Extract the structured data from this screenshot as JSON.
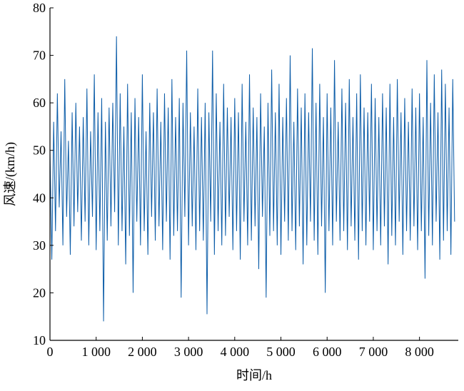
{
  "chart_data": {
    "type": "line",
    "xlabel": "时间/h",
    "ylabel": "风速/(km/h)",
    "xlim": [
      0,
      8840
    ],
    "ylim": [
      10,
      80
    ],
    "xticks": [
      0,
      {
        "value": 1000,
        "label": "1 000"
      },
      {
        "value": 2000,
        "label": "2 000"
      },
      {
        "value": 3000,
        "label": "3 000"
      },
      {
        "value": 4000,
        "label": "4 000"
      },
      {
        "value": 5000,
        "label": "5 000"
      },
      {
        "value": 6000,
        "label": "6 000"
      },
      {
        "value": 7000,
        "label": "7 000"
      },
      {
        "value": 8000,
        "label": "8 000"
      }
    ],
    "yticks": [
      10,
      20,
      30,
      40,
      50,
      60,
      70,
      80
    ],
    "color": "#0b5ca8",
    "x": [
      0,
      40,
      80,
      120,
      160,
      200,
      240,
      280,
      320,
      360,
      400,
      440,
      480,
      520,
      560,
      600,
      640,
      680,
      720,
      760,
      800,
      840,
      880,
      920,
      960,
      1000,
      1040,
      1080,
      1120,
      1160,
      1200,
      1240,
      1280,
      1320,
      1360,
      1400,
      1440,
      1480,
      1520,
      1560,
      1600,
      1640,
      1680,
      1720,
      1760,
      1800,
      1840,
      1880,
      1920,
      1960,
      2000,
      2040,
      2080,
      2120,
      2160,
      2200,
      2240,
      2280,
      2320,
      2360,
      2400,
      2440,
      2480,
      2520,
      2560,
      2600,
      2640,
      2680,
      2720,
      2760,
      2800,
      2840,
      2880,
      2920,
      2960,
      3000,
      3040,
      3080,
      3120,
      3160,
      3200,
      3240,
      3280,
      3320,
      3360,
      3400,
      3440,
      3480,
      3520,
      3560,
      3600,
      3640,
      3680,
      3720,
      3760,
      3800,
      3840,
      3880,
      3920,
      3960,
      4000,
      4040,
      4080,
      4120,
      4160,
      4200,
      4240,
      4280,
      4320,
      4360,
      4400,
      4440,
      4480,
      4520,
      4560,
      4600,
      4640,
      4680,
      4720,
      4760,
      4800,
      4840,
      4880,
      4920,
      4960,
      5000,
      5040,
      5080,
      5120,
      5160,
      5200,
      5240,
      5280,
      5320,
      5360,
      5400,
      5440,
      5480,
      5520,
      5560,
      5600,
      5640,
      5680,
      5720,
      5760,
      5800,
      5840,
      5880,
      5920,
      5960,
      6000,
      6040,
      6080,
      6120,
      6160,
      6200,
      6240,
      6280,
      6320,
      6360,
      6400,
      6440,
      6480,
      6520,
      6560,
      6600,
      6640,
      6680,
      6720,
      6760,
      6800,
      6840,
      6880,
      6920,
      6960,
      7000,
      7040,
      7080,
      7120,
      7160,
      7200,
      7240,
      7280,
      7320,
      7360,
      7400,
      7440,
      7480,
      7520,
      7560,
      7600,
      7640,
      7680,
      7720,
      7760,
      7800,
      7840,
      7880,
      7920,
      7960,
      8000,
      8040,
      8080,
      8120,
      8160,
      8200,
      8240,
      8280,
      8320,
      8360,
      8400,
      8440,
      8480,
      8520,
      8560,
      8600,
      8640,
      8680,
      8720,
      8760
    ],
    "values": [
      50,
      27,
      56,
      33,
      62,
      38,
      54,
      30,
      65,
      36,
      52,
      28,
      58,
      34,
      60,
      37,
      55,
      31,
      57,
      35,
      63,
      30,
      54,
      36,
      66,
      29,
      58,
      33,
      61,
      14,
      56,
      31,
      59,
      34,
      60,
      37,
      74,
      30,
      62,
      33,
      55,
      26,
      64,
      32,
      58,
      20,
      61,
      35,
      57,
      30,
      66,
      33,
      54,
      28,
      60,
      36,
      58,
      31,
      63,
      34,
      56,
      29,
      62,
      35,
      59,
      27,
      65,
      32,
      57,
      33,
      61,
      19,
      60,
      36,
      71,
      30,
      58,
      34,
      55,
      29,
      63,
      33,
      57,
      31,
      60,
      15.5,
      58,
      35,
      71,
      28,
      62,
      33,
      56,
      30,
      64,
      32,
      59,
      36,
      57,
      29,
      61,
      33,
      58,
      27,
      64,
      35,
      56,
      30,
      66,
      31,
      59,
      34,
      57,
      25,
      62,
      36,
      55,
      19,
      60,
      32,
      67,
      33,
      58,
      30,
      64,
      28,
      57,
      35,
      61,
      31,
      70,
      33,
      56,
      29,
      63,
      34,
      59,
      26,
      62,
      30,
      58,
      35,
      71.5,
      31,
      60,
      28,
      64,
      34,
      57,
      20,
      62,
      33,
      59,
      30,
      69,
      35,
      56,
      31,
      63,
      33,
      60,
      29,
      65,
      34,
      57,
      31,
      62,
      27,
      66,
      33,
      59,
      30,
      58,
      35,
      64,
      29,
      61,
      33,
      57,
      30,
      62,
      34,
      59,
      26,
      64,
      32,
      57,
      30,
      65,
      35,
      58,
      28,
      61,
      33,
      56,
      31,
      63,
      34,
      59,
      29,
      62,
      33,
      57,
      23,
      69,
      32,
      60,
      30,
      66,
      35,
      58,
      27,
      67,
      31,
      64,
      33,
      59,
      28,
      65,
      35
    ]
  }
}
